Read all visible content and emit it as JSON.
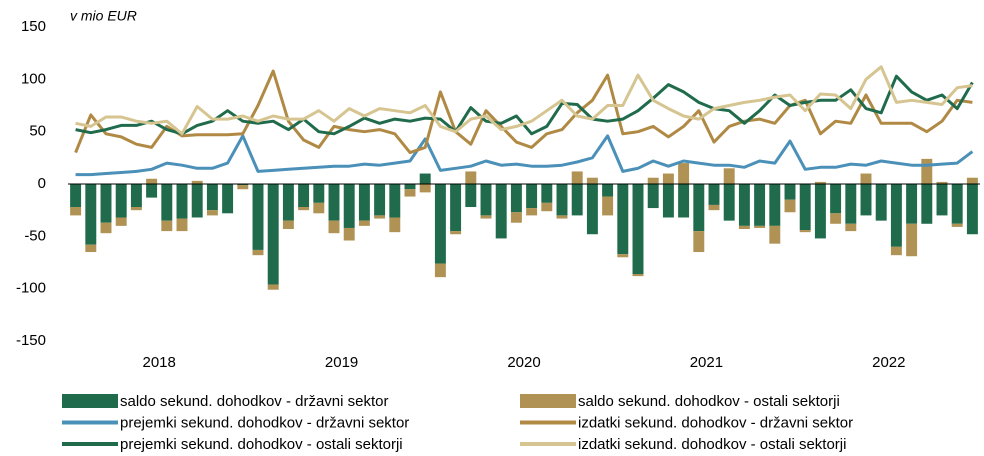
{
  "chart_data": {
    "type": "combo",
    "y_label": "v mio EUR",
    "ylim": [
      -150,
      150
    ],
    "yticks": [
      -150,
      -100,
      -50,
      0,
      50,
      100,
      150
    ],
    "grid": false,
    "categories": [
      "2018",
      null,
      null,
      null,
      null,
      null,
      null,
      null,
      null,
      null,
      null,
      null,
      "2019",
      null,
      null,
      null,
      null,
      null,
      null,
      null,
      null,
      null,
      null,
      null,
      "2020",
      null,
      null,
      null,
      null,
      null,
      null,
      null,
      null,
      null,
      null,
      null,
      "2021",
      null,
      null,
      null,
      null,
      null,
      null,
      null,
      null,
      null,
      null,
      null,
      "2022",
      null,
      null,
      null,
      null,
      null,
      null,
      null,
      null,
      null,
      null,
      null
    ],
    "series": [
      {
        "name": "saldo sekund. dohodkov - državni sektor",
        "type": "bar",
        "color": "#1f6b4c",
        "values": [
          -22,
          -58,
          -37,
          -32,
          -22,
          -13,
          -35,
          -33,
          -32,
          -25,
          -28,
          -1,
          -63,
          -96,
          -35,
          -22,
          -18,
          -35,
          -42,
          -35,
          -30,
          -32,
          -5,
          10,
          -76,
          -45,
          -22,
          -30,
          -52,
          -27,
          -23,
          -18,
          -30,
          -30,
          -48,
          -12,
          -67,
          -86,
          -23,
          -32,
          -32,
          -45,
          -20,
          -35,
          -40,
          -40,
          -40,
          -15,
          -44,
          -52,
          -28,
          -38,
          -30,
          -35,
          -60,
          -38,
          -38,
          -30,
          -38,
          -48
        ]
      },
      {
        "name": "saldo sekund. dohodkov - ostali sektorji",
        "type": "bar",
        "color": "#b09255",
        "values": [
          -8,
          -7,
          -10,
          -8,
          -3,
          5,
          -10,
          -12,
          3,
          -5,
          0,
          -4,
          -5,
          -5,
          -8,
          -3,
          -10,
          -12,
          -12,
          -5,
          -3,
          -14,
          -7,
          -8,
          -13,
          -3,
          12,
          -3,
          0,
          -10,
          -7,
          -8,
          -3,
          12,
          6,
          -18,
          -3,
          -2,
          6,
          10,
          20,
          -20,
          -5,
          15,
          -3,
          -2,
          -17,
          -12,
          -2,
          2,
          -10,
          -7,
          10,
          0,
          -8,
          -31,
          24,
          2,
          -3,
          6
        ]
      },
      {
        "name": "prejemki sekund. dohodkov - državni sektor",
        "type": "line",
        "color": "#4a90b8",
        "values": [
          9,
          9,
          10,
          11,
          12,
          14,
          20,
          18,
          15,
          15,
          20,
          46,
          12,
          13,
          14,
          15,
          16,
          17,
          17,
          19,
          18,
          20,
          22,
          43,
          13,
          15,
          17,
          22,
          18,
          19,
          17,
          17,
          18,
          21,
          25,
          46,
          12,
          15,
          22,
          17,
          22,
          20,
          18,
          18,
          16,
          22,
          20,
          41,
          14,
          16,
          16,
          19,
          18,
          22,
          20,
          18,
          18,
          19,
          20,
          31
        ]
      },
      {
        "name": "izdatki sekund. dohodkov - državni sektor",
        "type": "line",
        "color": "#b08a45",
        "values": [
          30,
          66,
          48,
          45,
          38,
          35,
          55,
          46,
          47,
          47,
          47,
          48,
          75,
          108,
          60,
          42,
          35,
          55,
          52,
          50,
          52,
          48,
          30,
          35,
          88,
          50,
          38,
          70,
          55,
          40,
          35,
          48,
          52,
          68,
          80,
          104,
          48,
          50,
          55,
          45,
          55,
          70,
          40,
          55,
          60,
          62,
          58,
          75,
          80,
          48,
          60,
          58,
          85,
          58,
          58,
          58,
          50,
          60,
          80,
          78
        ]
      },
      {
        "name": "prejemki sekund. dohodkov - ostali sektorji",
        "type": "line",
        "color": "#1f6b4c",
        "values": [
          52,
          49,
          52,
          56,
          56,
          60,
          52,
          48,
          56,
          60,
          70,
          60,
          58,
          60,
          52,
          62,
          50,
          48,
          55,
          63,
          58,
          62,
          60,
          63,
          62,
          50,
          73,
          60,
          58,
          65,
          48,
          55,
          77,
          76,
          62,
          60,
          62,
          70,
          82,
          95,
          88,
          78,
          72,
          70,
          58,
          70,
          85,
          75,
          78,
          80,
          80,
          90,
          72,
          68,
          103,
          88,
          80,
          85,
          72,
          97
        ]
      },
      {
        "name": "izdatki sekund. dohodkov - ostali sektorji",
        "type": "line",
        "color": "#d6c591",
        "values": [
          58,
          55,
          64,
          64,
          60,
          58,
          60,
          48,
          74,
          62,
          62,
          65,
          60,
          65,
          62,
          62,
          70,
          60,
          72,
          65,
          72,
          70,
          68,
          75,
          55,
          50,
          62,
          65,
          52,
          55,
          60,
          70,
          80,
          65,
          62,
          75,
          75,
          104,
          80,
          72,
          65,
          62,
          72,
          75,
          78,
          80,
          83,
          85,
          70,
          86,
          85,
          72,
          100,
          112,
          78,
          80,
          78,
          76,
          92,
          94
        ]
      }
    ]
  }
}
